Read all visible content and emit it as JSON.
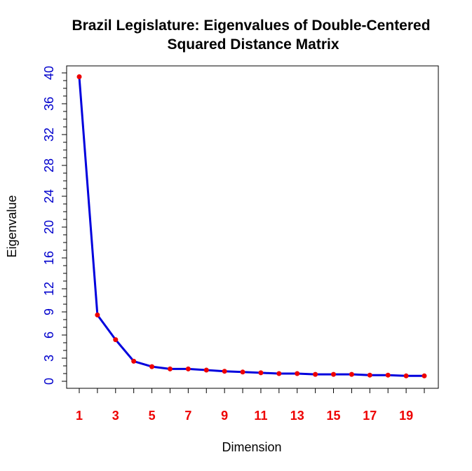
{
  "chart_data": {
    "type": "line",
    "title_line1": "Brazil Legislature: Eigenvalues of Double-Centered",
    "title_line2": "Squared Distance Matrix",
    "xlabel": "Dimension",
    "ylabel": "Eigenvalue",
    "x": [
      1,
      2,
      3,
      4,
      5,
      6,
      7,
      8,
      9,
      10,
      11,
      12,
      13,
      14,
      15,
      16,
      17,
      18,
      19,
      20
    ],
    "values": [
      39.5,
      8.6,
      5.4,
      2.6,
      1.9,
      1.6,
      1.6,
      1.45,
      1.3,
      1.2,
      1.1,
      1.0,
      1.0,
      0.9,
      0.9,
      0.9,
      0.8,
      0.8,
      0.7,
      0.7
    ],
    "xlim": [
      1,
      20
    ],
    "ylim": [
      0,
      40
    ],
    "y_tick_labels": [
      "0",
      "3",
      "6",
      "9",
      "12",
      "16",
      "20",
      "24",
      "28",
      "32",
      "36",
      "40"
    ],
    "y_tick_values": [
      0,
      3,
      6,
      9,
      12,
      16,
      20,
      24,
      28,
      32,
      36,
      40
    ],
    "x_tick_labels": [
      "1",
      "3",
      "5",
      "7",
      "9",
      "11",
      "13",
      "15",
      "17",
      "19"
    ],
    "x_tick_values": [
      1,
      3,
      5,
      7,
      9,
      11,
      13,
      15,
      17,
      19
    ],
    "y_minor_step": 1,
    "grid": false,
    "legend": "none",
    "colors": {
      "line": "#0000dd",
      "points": "#ee0000",
      "y_tick_labels": "#0000cc",
      "x_tick_labels": "#ee0000",
      "frame": "#000000"
    }
  }
}
